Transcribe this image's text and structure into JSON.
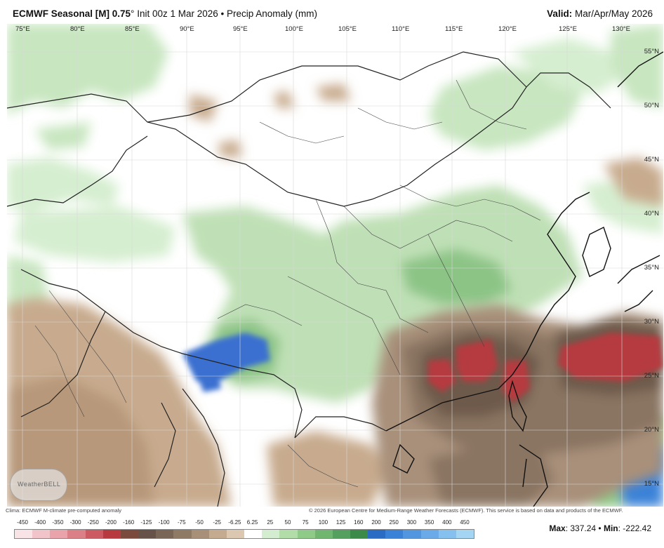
{
  "header": {
    "title_bold": "ECMWF Seasonal [M] 0.75",
    "title_rest": "° Init 00z 1 Mar 2026 • Precip Anomaly (mm)",
    "valid_label": "Valid:",
    "valid_value": "Mar/Apr/May 2026"
  },
  "longitudes": [
    "75°E",
    "80°E",
    "85°E",
    "90°E",
    "95°E",
    "100°E",
    "105°E",
    "110°E",
    "115°E",
    "120°E",
    "125°E",
    "130°E"
  ],
  "latitudes": [
    "55°N",
    "50°N",
    "45°N",
    "40°N",
    "35°N",
    "30°N",
    "25°N",
    "20°N",
    "15°N"
  ],
  "credits": {
    "left": "Clima: ECMWF M-climate pre-computed anomaly",
    "right": "© 2026 European Centre for Medium-Range Weather Forecasts (ECMWF). This service is based on data and products of the ECMWF."
  },
  "legend": {
    "ticks": [
      "-450",
      "-400",
      "-350",
      "-300",
      "-250",
      "-200",
      "-160",
      "-125",
      "-100",
      "-75",
      "-50",
      "-25",
      "-6.25",
      "6.25",
      "25",
      "50",
      "75",
      "100",
      "125",
      "160",
      "200",
      "250",
      "300",
      "350",
      "400",
      "450"
    ],
    "colors": [
      "#f8e4e6",
      "#f0c4c8",
      "#e8a4aa",
      "#dc8088",
      "#cc5a62",
      "#b63a40",
      "#7a4a3c",
      "#665248",
      "#7a6656",
      "#8f7a66",
      "#a89078",
      "#c4aa8e",
      "#dcc8b0",
      "#ffffff",
      "#d4ecd0",
      "#b2dca8",
      "#90ca88",
      "#70b670",
      "#54a05e",
      "#3c8a4a",
      "#2a6cc4",
      "#3a82d8",
      "#5296e0",
      "#6aaae8",
      "#86c0ee",
      "#a4d6f4"
    ]
  },
  "stats": {
    "max_label": "Max",
    "max_value": ": 337.24 •",
    "min_label": "Min",
    "min_value": ": -222.42"
  },
  "logo": {
    "text": "WeatherBELL"
  }
}
